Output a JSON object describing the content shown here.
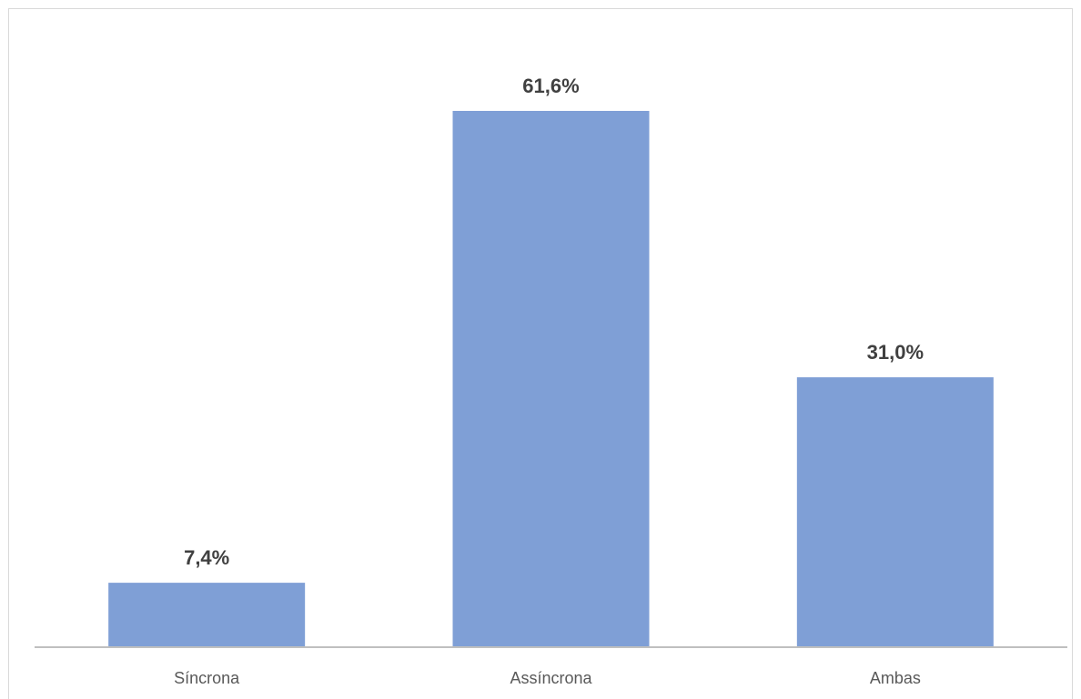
{
  "chart_data": {
    "type": "bar",
    "categories": [
      "Síncrona",
      "Assíncrona",
      "Ambas"
    ],
    "values": [
      7.4,
      61.6,
      31.0
    ],
    "data_labels": [
      "7,4%",
      "61,6%",
      "31,0%"
    ],
    "title": "",
    "xlabel": "",
    "ylabel": "",
    "ylim": [
      0,
      61.6
    ],
    "grid": false,
    "legend": "none",
    "colors": {
      "bar": "#7f9fd6",
      "axis": "#bfbfbf",
      "label": "#404040",
      "tick": "#595959"
    }
  }
}
